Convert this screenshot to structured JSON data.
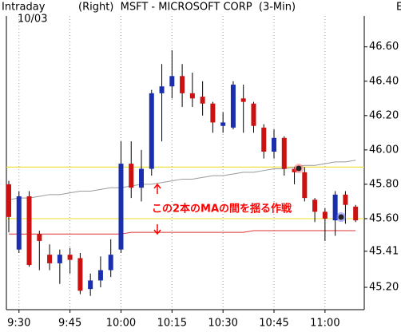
{
  "chart_data": {
    "type": "candlestick",
    "header": [
      "Intraday",
      "10/03"
    ],
    "title": "(Right)  MSFT - MICROSOFT CORP  (3-Min)",
    "corner_label": "E",
    "annotation": "この2本のMAの間を揺る作戦",
    "categories": [
      null,
      "9:30",
      null,
      null,
      null,
      null,
      "9:45",
      null,
      null,
      null,
      null,
      "10:00",
      null,
      null,
      null,
      null,
      "10:15",
      null,
      null,
      null,
      null,
      "10:30",
      null,
      null,
      null,
      null,
      "10:45",
      null,
      null,
      null,
      null,
      "11:00",
      null,
      null,
      null
    ],
    "open": [
      45.8,
      45.42,
      45.73,
      45.51,
      45.39,
      45.34,
      45.39,
      45.37,
      45.19,
      45.24,
      45.3,
      45.42,
      45.92,
      45.78,
      45.89,
      46.33,
      46.37,
      46.43,
      46.33,
      46.31,
      46.27,
      46.14,
      46.13,
      46.3,
      46.27,
      46.13,
      45.99,
      46.07,
      45.89,
      45.87,
      45.71,
      45.64,
      45.59,
      45.74,
      45.67
    ],
    "high": [
      45.82,
      45.76,
      45.76,
      45.53,
      45.45,
      45.42,
      45.43,
      45.4,
      45.28,
      45.38,
      45.48,
      46.05,
      46.05,
      46.0,
      46.35,
      46.5,
      46.58,
      46.5,
      46.45,
      46.4,
      46.28,
      46.22,
      46.4,
      46.38,
      46.28,
      46.15,
      46.12,
      46.08,
      45.9,
      45.9,
      45.72,
      45.66,
      45.76,
      45.76,
      45.68
    ],
    "low": [
      45.52,
      45.4,
      45.32,
      45.3,
      45.3,
      45.22,
      45.28,
      45.16,
      45.15,
      45.2,
      45.26,
      45.4,
      45.72,
      45.7,
      45.85,
      46.05,
      46.3,
      46.25,
      46.25,
      46.2,
      46.1,
      46.1,
      46.12,
      46.1,
      46.1,
      45.95,
      45.95,
      45.85,
      45.8,
      45.7,
      45.58,
      45.47,
      45.5,
      45.57,
      45.58
    ],
    "close": [
      45.61,
      45.73,
      45.33,
      45.47,
      45.34,
      45.39,
      45.36,
      45.18,
      45.24,
      45.3,
      45.39,
      45.92,
      45.78,
      45.89,
      46.33,
      46.37,
      46.43,
      46.33,
      46.3,
      46.27,
      46.16,
      46.16,
      46.38,
      46.28,
      46.14,
      45.99,
      46.07,
      45.89,
      45.87,
      45.72,
      45.64,
      45.6,
      45.74,
      45.68,
      45.59
    ],
    "up_color": "#1a2fb0",
    "down_color": "#cc1111",
    "lines": [
      {
        "color": "#999999",
        "values": [
          45.71,
          45.72,
          45.72,
          45.73,
          45.74,
          45.74,
          45.75,
          45.76,
          45.76,
          45.77,
          45.78,
          45.78,
          45.79,
          45.8,
          45.8,
          45.81,
          45.82,
          45.83,
          45.83,
          45.84,
          45.85,
          45.85,
          45.86,
          45.87,
          45.87,
          45.88,
          45.89,
          45.89,
          45.9,
          45.91,
          45.91,
          45.92,
          45.93,
          45.93,
          45.94
        ]
      },
      {
        "color": "#dd3333",
        "values": [
          45.51,
          45.51,
          45.51,
          45.51,
          45.51,
          45.51,
          45.51,
          45.51,
          45.51,
          45.51,
          45.51,
          45.51,
          45.52,
          45.52,
          45.52,
          45.52,
          45.52,
          45.52,
          45.52,
          45.52,
          45.52,
          45.52,
          45.52,
          45.52,
          45.53,
          45.53,
          45.53,
          45.53,
          45.53,
          45.53,
          45.53,
          45.53,
          45.53,
          45.53,
          45.53
        ]
      }
    ],
    "hlines": [
      {
        "value": 45.9,
        "color": "#f0e040"
      },
      {
        "value": 45.6,
        "color": "#f0e040"
      }
    ],
    "ylim": [
      45.07,
      46.78
    ],
    "yticks": [
      {
        "value": 46.6,
        "label": "46.60"
      },
      {
        "value": 46.4,
        "label": "46.40"
      },
      {
        "value": 46.2,
        "label": "46.20"
      },
      {
        "value": 46.0,
        "label": "46.00"
      },
      {
        "value": 45.8,
        "label": "45.80"
      },
      {
        "value": 45.6,
        "label": "45.60"
      },
      45.41,
      {
        "value": 45.2,
        "label": "45.20"
      }
    ]
  }
}
